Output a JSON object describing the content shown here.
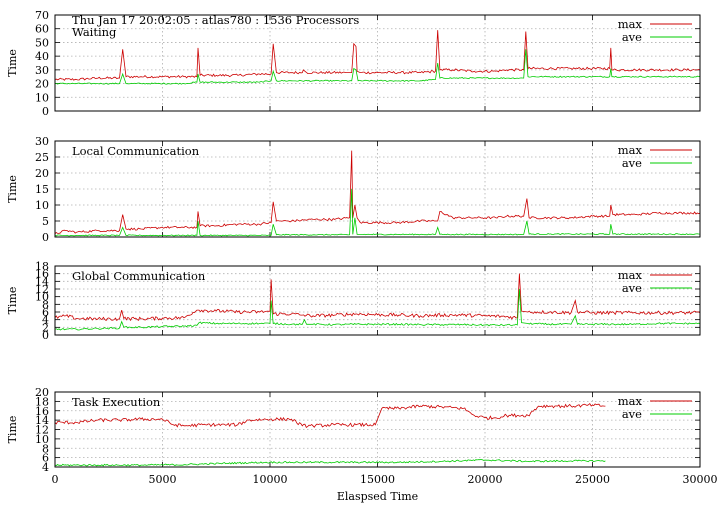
{
  "header": {
    "line1": "Thu Jan 17 20:02:05 : atlas780 : 1536 Processors"
  },
  "colors": {
    "max": "#cc0000",
    "ave": "#00cc00",
    "grid": "#b0b0b0"
  },
  "legend": {
    "max_label": "max",
    "ave_label": "ave"
  },
  "chart_data": [
    {
      "type": "line",
      "title": "Waiting",
      "ylabel": "Time",
      "ylim": [
        0,
        70
      ],
      "yticks": [
        0,
        10,
        20,
        30,
        40,
        50,
        60,
        70
      ],
      "xlim": [
        0,
        30000
      ],
      "grid": true,
      "legend_position": "top-right",
      "series": [
        {
          "name": "max",
          "x": [
            0,
            1000,
            2000,
            3000,
            3150,
            3300,
            4000,
            5000,
            6000,
            6600,
            6650,
            6750,
            7500,
            8500,
            9500,
            10050,
            10150,
            10300,
            11000,
            11500,
            11550,
            11700,
            12500,
            13500,
            13800,
            13900,
            14000,
            14050,
            14200,
            15000,
            16000,
            17000,
            17700,
            17800,
            17900,
            18500,
            19500,
            20500,
            21000,
            21800,
            21900,
            22000,
            23000,
            24000,
            25000,
            25800,
            25850,
            25900,
            27000,
            28000,
            29000,
            30000
          ],
          "y": [
            23,
            23,
            24,
            24,
            45,
            25,
            25,
            25,
            25,
            25,
            46,
            26,
            26,
            26,
            27,
            27,
            49,
            28,
            28,
            28,
            30,
            28,
            28,
            28,
            28,
            49,
            47,
            29,
            28,
            28,
            28,
            28,
            29,
            59,
            30,
            30,
            29,
            29,
            30,
            30,
            58,
            31,
            31,
            31,
            31,
            31,
            46,
            30,
            30,
            30,
            30,
            30
          ]
        },
        {
          "name": "ave",
          "x": [
            0,
            1000,
            2000,
            3000,
            3150,
            3300,
            4000,
            5000,
            6000,
            6600,
            6650,
            6750,
            7500,
            8500,
            9500,
            10050,
            10150,
            10300,
            11000,
            12000,
            13000,
            13800,
            13900,
            14000,
            14100,
            15000,
            16000,
            17000,
            17700,
            17800,
            17900,
            18500,
            19500,
            20500,
            21000,
            21800,
            21900,
            22000,
            23000,
            24000,
            25000,
            25800,
            25850,
            25900,
            27000,
            28000,
            29000,
            30000
          ],
          "y": [
            20,
            20,
            20,
            20,
            27,
            20,
            20,
            20,
            20,
            21,
            27,
            21,
            21,
            21,
            21,
            22,
            29,
            22,
            22,
            22,
            22,
            22,
            31,
            30,
            22,
            22,
            22,
            22,
            23,
            35,
            24,
            24,
            24,
            24,
            24,
            24,
            45,
            25,
            25,
            25,
            25,
            25,
            31,
            25,
            25,
            25,
            25,
            25
          ]
        }
      ]
    },
    {
      "type": "line",
      "title": "Local Communication",
      "ylabel": "Time",
      "ylim": [
        0,
        30
      ],
      "yticks": [
        0,
        5,
        10,
        15,
        20,
        25,
        30
      ],
      "xlim": [
        0,
        30000
      ],
      "grid": true,
      "legend_position": "top-right",
      "series": [
        {
          "name": "max",
          "x": [
            0,
            500,
            1000,
            2000,
            3000,
            3150,
            3300,
            4000,
            5000,
            6000,
            6600,
            6650,
            6750,
            7500,
            8500,
            9500,
            10050,
            10150,
            10300,
            11000,
            12000,
            13000,
            13700,
            13800,
            13850,
            13950,
            14050,
            14200,
            15000,
            16000,
            17000,
            17700,
            17800,
            17900,
            18500,
            19500,
            20500,
            21000,
            21800,
            21950,
            22050,
            23000,
            24000,
            25000,
            25800,
            25850,
            25950,
            27000,
            28000,
            29000,
            30000
          ],
          "y": [
            1,
            2,
            1.5,
            2,
            2,
            7,
            2.5,
            2.5,
            3,
            3,
            3,
            8,
            3.5,
            3.5,
            4,
            4,
            4.5,
            11,
            5,
            5,
            5.5,
            5.5,
            6,
            27,
            6,
            10,
            6,
            4.5,
            4.5,
            4.5,
            5,
            5,
            5,
            8,
            6,
            6,
            6,
            6.5,
            6.5,
            12,
            6,
            6,
            6,
            6.5,
            6.5,
            10,
            7,
            7,
            7.5,
            7.5,
            7.5
          ]
        },
        {
          "name": "ave",
          "x": [
            0,
            1000,
            2000,
            3000,
            3150,
            3300,
            4000,
            5000,
            6000,
            6600,
            6650,
            6750,
            7500,
            8500,
            9500,
            10050,
            10150,
            10300,
            11000,
            12000,
            13000,
            13700,
            13800,
            13850,
            13950,
            14050,
            14200,
            15000,
            16000,
            17000,
            17700,
            17800,
            17900,
            18500,
            19500,
            20500,
            21000,
            21800,
            21950,
            22050,
            23000,
            24000,
            25000,
            25800,
            25850,
            25950,
            27000,
            28000,
            29000,
            30000
          ],
          "y": [
            0.5,
            0.5,
            0.5,
            0.5,
            3,
            0.5,
            0.5,
            0.5,
            0.5,
            0.5,
            5,
            0.5,
            0.5,
            0.5,
            0.5,
            0.5,
            4,
            0.7,
            0.7,
            0.7,
            0.7,
            0.7,
            15,
            0.8,
            6,
            0.8,
            0.8,
            0.8,
            0.8,
            0.8,
            0.8,
            3,
            0.8,
            0.8,
            0.8,
            0.8,
            0.8,
            0.8,
            5,
            0.9,
            0.9,
            0.9,
            0.9,
            0.9,
            4,
            0.9,
            0.9,
            0.9,
            0.9,
            0.9
          ]
        }
      ]
    },
    {
      "type": "line",
      "title": "Global Communication",
      "ylabel": "Time",
      "ylim": [
        0,
        18
      ],
      "yticks": [
        0,
        2,
        4,
        6,
        8,
        10,
        12,
        14,
        16,
        18
      ],
      "xlim": [
        0,
        30000
      ],
      "grid": true,
      "legend_position": "top-right",
      "series": [
        {
          "name": "max",
          "x": [
            0,
            500,
            1000,
            2000,
            3000,
            3100,
            3200,
            4000,
            5000,
            6000,
            6600,
            6700,
            7500,
            8500,
            9500,
            10000,
            10050,
            10150,
            11000,
            11500,
            12000,
            13000,
            14000,
            15000,
            16000,
            17000,
            18000,
            19000,
            20000,
            21000,
            21500,
            21600,
            21700,
            22000,
            23000,
            24000,
            24200,
            24300,
            25000,
            26000,
            27000,
            28000,
            29000,
            30000
          ],
          "y": [
            4.5,
            5,
            4.3,
            4.2,
            4.2,
            6.5,
            4.3,
            4.2,
            4.4,
            4.5,
            6.5,
            6.5,
            6.3,
            6,
            6,
            6.2,
            14.5,
            5.5,
            5.5,
            5.2,
            5,
            5.2,
            5.5,
            5.3,
            5.2,
            5,
            5.2,
            5.2,
            5,
            4.8,
            4.5,
            16,
            6.2,
            6,
            6,
            5.8,
            9,
            6,
            5.8,
            5.8,
            5.8,
            5.8,
            5.8,
            5.8
          ]
        },
        {
          "name": "ave",
          "x": [
            0,
            1000,
            2000,
            3000,
            3100,
            3200,
            4000,
            5000,
            6000,
            6600,
            6700,
            7500,
            8500,
            9500,
            10000,
            10050,
            10150,
            11000,
            11500,
            11600,
            11700,
            12000,
            13000,
            14000,
            15000,
            16000,
            17000,
            18000,
            19000,
            20000,
            21000,
            21500,
            21600,
            21700,
            22000,
            23000,
            24000,
            24200,
            24300,
            25000,
            26000,
            27000,
            28000,
            29000,
            30000
          ],
          "y": [
            1.5,
            1.5,
            1.7,
            1.8,
            3.5,
            2,
            2,
            2.2,
            2.3,
            2.5,
            3.2,
            3,
            3,
            3,
            3,
            9,
            3,
            2.8,
            2.8,
            4,
            2.8,
            2.8,
            2.7,
            2.8,
            2.8,
            2.8,
            2.7,
            2.7,
            2.7,
            2.6,
            2.6,
            2.6,
            12,
            3.2,
            3,
            2.8,
            2.8,
            5,
            2.8,
            2.8,
            2.8,
            2.8,
            3,
            3,
            3
          ]
        }
      ]
    },
    {
      "type": "line",
      "title": "Task Execution",
      "ylabel": "Time",
      "ylim": [
        4,
        20
      ],
      "yticks": [
        4,
        6,
        8,
        10,
        12,
        14,
        16,
        18,
        20
      ],
      "xlim": [
        0,
        30000
      ],
      "xticks": [
        0,
        5000,
        10000,
        15000,
        20000,
        25000,
        30000
      ],
      "xlabel": "Elaspsed Time",
      "grid": true,
      "legend_position": "top-right",
      "series": [
        {
          "name": "max",
          "x": [
            0,
            1000,
            2000,
            3000,
            4000,
            5000,
            5500,
            6000,
            7000,
            8000,
            8500,
            9000,
            10000,
            11000,
            11500,
            12000,
            13000,
            14000,
            14900,
            15200,
            16000,
            17000,
            18000,
            19000,
            19500,
            20000,
            20500,
            21000,
            21500,
            22000,
            22500,
            23000,
            24000,
            25000,
            25600
          ],
          "y": [
            13.5,
            13.5,
            14,
            14,
            14.2,
            14.2,
            13,
            12.8,
            13,
            13,
            13,
            14,
            14.2,
            14.2,
            12.8,
            12.8,
            13,
            13,
            13,
            16.5,
            16.5,
            17,
            16.8,
            16.5,
            15,
            14.5,
            14.5,
            15,
            15,
            15,
            17,
            17,
            17,
            17.2,
            17
          ]
        },
        {
          "name": "ave",
          "x": [
            0,
            2000,
            4000,
            6000,
            8000,
            10000,
            12000,
            14000,
            16000,
            18000,
            20000,
            22000,
            24000,
            25600
          ],
          "y": [
            4.4,
            4.4,
            4.4,
            4.5,
            4.8,
            5,
            5,
            5,
            5,
            5.2,
            5.5,
            5.2,
            5.3,
            5.3
          ]
        }
      ]
    }
  ]
}
